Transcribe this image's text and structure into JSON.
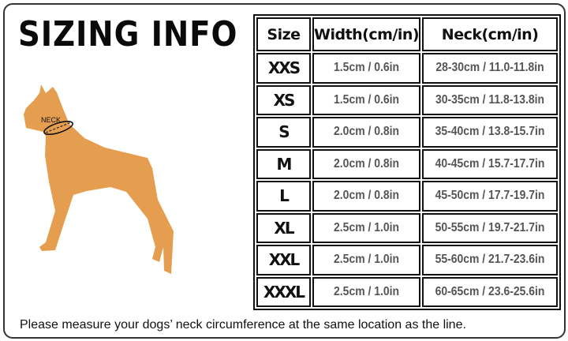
{
  "title": "SIZING INFO",
  "figure": {
    "label": "NECK",
    "fill_color": "#E59E50"
  },
  "table": {
    "headers": [
      "Size",
      "Width(cm/in)",
      "Neck(cm/in)"
    ],
    "rows": [
      {
        "size": "XXS",
        "width": "1.5cm / 0.6in",
        "neck": "28-30cm / 11.0-11.8in"
      },
      {
        "size": "XS",
        "width": "1.5cm / 0.6in",
        "neck": "30-35cm / 11.8-13.8in"
      },
      {
        "size": "S",
        "width": "2.0cm / 0.8in",
        "neck": "35-40cm / 13.8-15.7in"
      },
      {
        "size": "M",
        "width": "2.0cm / 0.8in",
        "neck": "40-45cm / 15.7-17.7in"
      },
      {
        "size": "L",
        "width": "2.0cm / 0.8in",
        "neck": "45-50cm / 17.7-19.7in"
      },
      {
        "size": "XL",
        "width": "2.5cm / 1.0in",
        "neck": "50-55cm / 19.7-21.7in"
      },
      {
        "size": "XXL",
        "width": "2.5cm / 1.0in",
        "neck": "55-60cm / 21.7-23.6in"
      },
      {
        "size": "XXXL",
        "width": "2.5cm / 1.0in",
        "neck": "60-65cm / 23.6-25.6in"
      }
    ]
  },
  "note": "Please measure your dogs’  neck circumference at the same location as the line."
}
